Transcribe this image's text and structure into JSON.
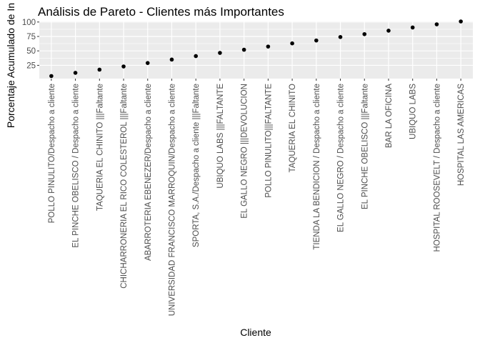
{
  "chart_data": {
    "type": "scatter",
    "title": "Análisis de Pareto - Clientes más Importantes",
    "xlabel": "Cliente",
    "ylabel": "Porcentaje Acumulado de In",
    "ylim": [
      2,
      101
    ],
    "yticks": [
      25,
      50,
      75,
      100
    ],
    "grid": true,
    "categories": [
      "POLLO PINULITO/Despacho a cliente",
      "EL PINCHE OBELISCO / Despacho a cliente",
      "TAQUERIA EL CHINITO |||Faltante",
      "CHICHARRONERIA EL RICO COLESTEROL |||Faltante",
      "ABARROTERIA EBENEZER/Despacho a cliente",
      "UNIVERSIDAD FRANCISCO MARROQUIN/Despacho a cliente",
      "SPORTA, S.A./Despacho a cliente |||Faltante",
      "UBIQUO LABS |||FALTANTE",
      "EL GALLO NEGRO |||DEVOLUCION",
      "POLLO PINULITO|||FALTANTE",
      "TAQUERIA EL CHINITO",
      "TIENDA LA BENDICION / Despacho a cliente",
      "EL GALLO NEGRO / Despacho a cliente",
      "EL PINCHE OBELISCO |||Faltante",
      "BAR LA OFICINA",
      "UBIQUO LABS",
      "HOSPITAL ROOSEVELT / Despacho a cliente",
      "HOSPITAL LAS AMERICAS"
    ],
    "values": [
      6.5,
      12,
      17.5,
      23,
      29,
      35,
      41,
      46.5,
      52,
      57.5,
      63,
      68,
      74,
      79,
      85,
      90.5,
      96,
      101
    ],
    "point_color": "#000000",
    "panel_color": "#ebebeb",
    "grid_color": "#ffffff"
  }
}
